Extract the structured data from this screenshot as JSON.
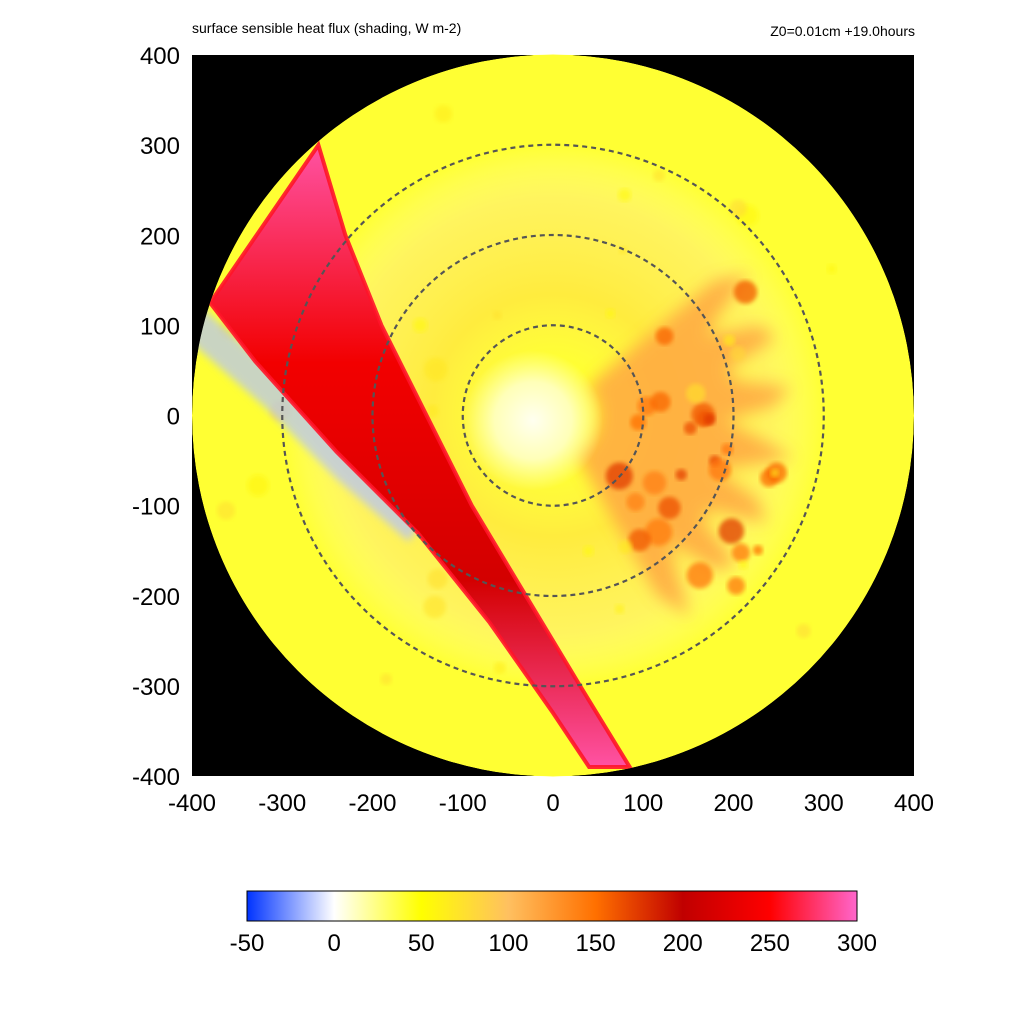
{
  "header": {
    "title": "surface sensible heat flux (shading, W m-2)",
    "run_info": "Z0=0.01cm  +19.0hours"
  },
  "chart_data": {
    "type": "heatmap",
    "title": "surface sensible heat flux (shading, W m-2)",
    "subtitle": "Z0=0.01cm  +19.0hours",
    "xlabel": "",
    "ylabel": "",
    "units": "W m-2",
    "xlim": [
      -400,
      400
    ],
    "ylim": [
      -400,
      400
    ],
    "x_ticks": [
      "-400",
      "-300",
      "-200",
      "-100",
      "0",
      "100",
      "200",
      "300",
      "400"
    ],
    "y_ticks": [
      "400",
      "300",
      "200",
      "100",
      "0",
      "-100",
      "-200",
      "-300",
      "-400"
    ],
    "domain": {
      "shape": "circle",
      "center": [
        0,
        0
      ],
      "radius": 400,
      "outside_color": "#000000"
    },
    "range_rings": [
      100,
      200,
      300
    ],
    "eye": {
      "center": [
        0,
        0
      ],
      "value": 30
    },
    "field": {
      "background": 40,
      "core_band": {
        "inner_radius": 100,
        "outer_radius": 300,
        "value": 55
      },
      "rainband": {
        "angle_from_deg": -60,
        "angle_to_deg": 40,
        "inner_radius": 50,
        "outer_radius": 270,
        "value": 115
      },
      "cold_pool": {
        "along_strip_left": true,
        "value": -15
      },
      "strip": {
        "outer_edge": [
          [
            -260,
            300
          ],
          [
            -230,
            200
          ],
          [
            -190,
            100
          ],
          [
            -140,
            0
          ],
          [
            -90,
            -100
          ],
          [
            -30,
            -200
          ],
          [
            30,
            -300
          ],
          [
            85,
            -390
          ]
        ],
        "inner_edge": [
          [
            -380,
            125
          ],
          [
            -330,
            60
          ],
          [
            -240,
            -40
          ],
          [
            -150,
            -130
          ],
          [
            -70,
            -230
          ],
          [
            0,
            -330
          ],
          [
            40,
            -390
          ]
        ],
        "value_north": 290,
        "value_south": 215
      }
    },
    "colorbar": {
      "ticks": [
        "-50",
        "0",
        "50",
        "100",
        "150",
        "200",
        "250",
        "300"
      ],
      "min": -50,
      "max": 300,
      "stops": [
        {
          "value": -50,
          "color": "#0033ff"
        },
        {
          "value": 0,
          "color": "#ffffff"
        },
        {
          "value": 50,
          "color": "#ffff00"
        },
        {
          "value": 100,
          "color": "#ffc060"
        },
        {
          "value": 150,
          "color": "#ff7000"
        },
        {
          "value": 200,
          "color": "#c00000"
        },
        {
          "value": 250,
          "color": "#ff0000"
        },
        {
          "value": 300,
          "color": "#ff66cc"
        }
      ]
    }
  }
}
